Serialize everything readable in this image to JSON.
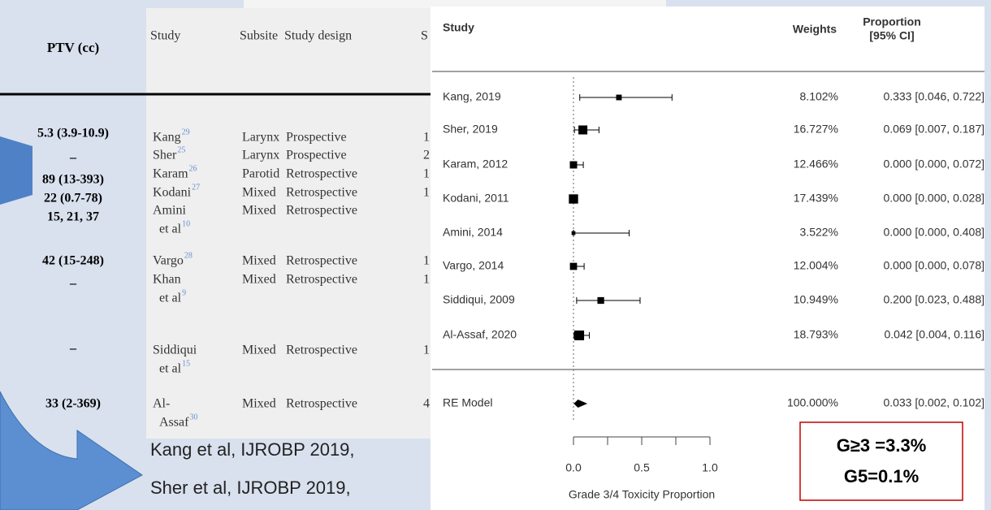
{
  "ptv": {
    "header": "PTV (cc)",
    "values": [
      "5.3 (3.9-10.9)",
      "–",
      "89 (13-393)",
      "22 (0.7-78)",
      "15,  21,  37",
      "42 (15-248)",
      "–",
      "–",
      "33 (2-369)"
    ]
  },
  "table": {
    "header": [
      "Study",
      "Subsite",
      "Study design",
      "S"
    ],
    "rows": [
      {
        "study": "Kang",
        "ref": "29",
        "subsite": "Larynx",
        "design": "Prospective",
        "n": "1"
      },
      {
        "study": "Sher",
        "ref": "25",
        "subsite": "Larynx",
        "design": "Prospective",
        "n": "2"
      },
      {
        "study": "Karam",
        "ref": "26",
        "subsite": "Parotid",
        "design": "Retrospective",
        "n": "1"
      },
      {
        "study": "Kodani",
        "ref": "27",
        "subsite": "Mixed",
        "design": "Retrospective",
        "n": "1"
      },
      {
        "study": "Amini",
        "study2": "et al",
        "ref": "10",
        "subsite": "Mixed",
        "design": "Retrospective"
      },
      {
        "study": "Vargo",
        "ref": "28",
        "subsite": "Mixed",
        "design": "Retrospective",
        "n": "1"
      },
      {
        "study": "Khan",
        "study2": "et al",
        "ref": "9",
        "subsite": "Mixed",
        "design": "Retrospective",
        "n": "1"
      },
      {
        "study": "Siddiqui",
        "study2": "et al",
        "ref": "15",
        "subsite": "Mixed",
        "design": "Retrospective",
        "n": "1"
      },
      {
        "study": "Al-",
        "study2": "Assaf",
        "ref": "30",
        "subsite": "Mixed",
        "design": "Retrospective",
        "n": "4"
      }
    ]
  },
  "citations": [
    "Kang et al, IJROBP 2019,",
    "Sher et al, IJROBP 2019,"
  ],
  "callout": [
    "G≥3 =3.3%",
    "G5=0.1%"
  ],
  "chart_data": {
    "type": "forest",
    "study_header": "Study",
    "weights_header": "Weights",
    "proportion_header": [
      "Proportion",
      "[95% CI]"
    ],
    "categories": [
      "Kang, 2019",
      "Sher, 2019",
      "Karam, 2012",
      "Kodani, 2011",
      "Amini, 2014",
      "Vargo, 2014",
      "Siddiqui, 2009",
      "Al-Assaf, 2020"
    ],
    "weights": [
      8.102,
      16.727,
      12.466,
      17.439,
      3.522,
      12.004,
      10.949,
      18.793
    ],
    "weight_labels": [
      "8.102%",
      "16.727%",
      "12.466%",
      "17.439%",
      "3.522%",
      "12.004%",
      "10.949%",
      "18.793%"
    ],
    "estimates": [
      0.333,
      0.069,
      0,
      0,
      0,
      0,
      0.2,
      0.042
    ],
    "lower": [
      0.046,
      0.007,
      0,
      0,
      0,
      0,
      0.023,
      0.004
    ],
    "upper": [
      0.722,
      0.187,
      0.072,
      0.028,
      0.408,
      0.078,
      0.488,
      0.116
    ],
    "ci_labels": [
      "0.333 [0.046, 0.722]",
      "0.069 [0.007, 0.187]",
      "0.000 [0.000, 0.072]",
      "0.000 [0.000, 0.028]",
      "0.000 [0.000, 0.408]",
      "0.000 [0.000, 0.078]",
      "0.200 [0.023, 0.488]",
      "0.042 [0.004, 0.116]"
    ],
    "summary": {
      "label": "RE Model",
      "weight": 100,
      "weight_label": "100.000%",
      "estimate": 0.033,
      "lower": 0.002,
      "upper": 0.102,
      "ci_label": "0.033 [0.002, 0.102]"
    },
    "xlim": [
      0,
      1
    ],
    "xticks": [
      {
        "value": 0,
        "label": "0.0"
      },
      0.5,
      {
        "value": 1,
        "label": "1.0"
      }
    ],
    "xlabel": "Grade 3/4 Toxicity Proportion",
    "color": "#000000"
  }
}
